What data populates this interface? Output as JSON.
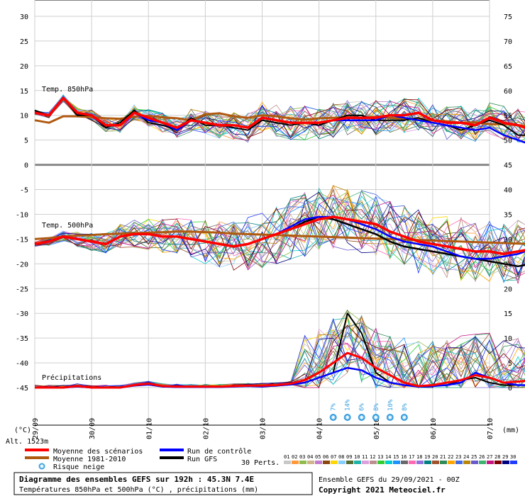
{
  "chart_data": {
    "type": "line",
    "title": "Diagramme des ensembles GEFS sur 192h : 45.3N 7.4E",
    "subtitle": "Températures 850hPa et 500hPa (°C) , précipitations (mm)",
    "run_info": "Ensemble GEFS du 29/09/2021 - 00Z",
    "copyright": "Copyright 2021 Meteociel.fr",
    "altitude": "Alt. 1523m",
    "left_unit": "(°C)",
    "right_unit": "(mm)",
    "left_ticks": [
      "30",
      "25",
      "20",
      "15",
      "10",
      "5",
      "0",
      "-5",
      "-10",
      "-15",
      "-20",
      "-25",
      "-30",
      "-35",
      "-40",
      "-45"
    ],
    "right_ticks": [
      "75",
      "70",
      "65",
      "60",
      "55",
      "50",
      "45",
      "40",
      "35",
      "30",
      "25",
      "20",
      "15",
      "10",
      "5",
      "0"
    ],
    "x_ticks": [
      "29/09",
      "30/09",
      "01/10",
      "02/10",
      "03/10",
      "04/10",
      "05/10",
      "06/10",
      "07/10"
    ],
    "panel_labels": {
      "t850": "Temp. 850hPa",
      "t500": "Temp. 500hPa",
      "precip": "Précipitations"
    },
    "legend": {
      "mean": {
        "label": "Moyenne des scénarios",
        "color": "#ff0000"
      },
      "climo": {
        "label": "Moyenne 1981-2010",
        "color": "#b05a10"
      },
      "snow": {
        "label": "Risque neige",
        "icon": "snowflake-icon",
        "color": "#3aa0e0"
      },
      "control": {
        "label": "Run de contrôle",
        "color": "#0000ff"
      },
      "gfs": {
        "label": "Run GFS",
        "color": "#000000"
      },
      "perts_label": "30 Perts."
    },
    "pert_numbers": [
      "01",
      "02",
      "03",
      "04",
      "05",
      "06",
      "07",
      "08",
      "09",
      "10",
      "11",
      "12",
      "13",
      "14",
      "15",
      "16",
      "17",
      "18",
      "19",
      "20",
      "21",
      "22",
      "23",
      "24",
      "25",
      "26",
      "27",
      "28",
      "29",
      "30"
    ],
    "pert_colors": [
      "#c8c8c8",
      "#ff9a3c",
      "#8fbc4f",
      "#d2b48c",
      "#c27bd0",
      "#8b4513",
      "#ffd700",
      "#87cefa",
      "#556b2f",
      "#20b2aa",
      "#dda0dd",
      "#bc8f8f",
      "#32cd32",
      "#00ced1",
      "#1e90ff",
      "#696969",
      "#ff69b4",
      "#9370db",
      "#008080",
      "#a0522d",
      "#2e8b57",
      "#ffa500",
      "#4169e1",
      "#b8860b",
      "#6a5acd",
      "#3cb371",
      "#c71585",
      "#800000",
      "#000080",
      "#1e3cff"
    ],
    "snow_risk": [
      {
        "x": 5.25,
        "pct": "7%"
      },
      {
        "x": 5.5,
        "pct": "14%"
      },
      {
        "x": 5.75,
        "pct": "6%"
      },
      {
        "x": 6.0,
        "pct": "8%"
      },
      {
        "x": 6.25,
        "pct": "10%"
      },
      {
        "x": 6.5,
        "pct": "8%"
      }
    ],
    "x_step_days": 0.25,
    "t850": {
      "mean": [
        10.5,
        10,
        13.5,
        10.5,
        10,
        8,
        8,
        10.5,
        9.5,
        8.5,
        7.5,
        9,
        8.5,
        8,
        8,
        7.5,
        9.5,
        9,
        8.5,
        8.5,
        8.5,
        9,
        9.5,
        9.5,
        9.5,
        10,
        10,
        10.5,
        9,
        8.5,
        8.5,
        8,
        9.5,
        8.5,
        8,
        7,
        8,
        6.5,
        6
      ],
      "climo": [
        9,
        8.5,
        9.8,
        9.8,
        9.6,
        9.4,
        9.3,
        9.7,
        9.9,
        9.6,
        9.4,
        9,
        10.2,
        10.4,
        9.8,
        9.5,
        10,
        9.8,
        9.4,
        9.1,
        9.4,
        9.5,
        9.6,
        9.5,
        9.7,
        9.5,
        9.3,
        9.3,
        9,
        8.8,
        8.5,
        8.6,
        8.2,
        8.2,
        8,
        7.8,
        7.8,
        7.5,
        7.2
      ],
      "control": [
        10.5,
        10,
        13.5,
        10.5,
        10,
        8,
        8,
        10.5,
        9,
        8.5,
        7,
        9,
        8.5,
        8,
        8,
        7.5,
        9.5,
        9,
        8.5,
        8.5,
        8.5,
        9,
        9,
        9,
        9,
        10,
        9.5,
        9,
        8.5,
        8,
        7.5,
        7,
        7.5,
        6,
        5,
        4,
        4.5,
        3,
        2.5
      ],
      "gfs": [
        11,
        10,
        13.5,
        10,
        10,
        7.5,
        8.5,
        11,
        8.5,
        8,
        7,
        9.5,
        8,
        8,
        7.5,
        7,
        9,
        8.5,
        8,
        8.5,
        8,
        9,
        10,
        10,
        9,
        9,
        9,
        9.5,
        8.5,
        8,
        7,
        8,
        9,
        8,
        6,
        6,
        7,
        5,
        4.5
      ]
    },
    "t500": {
      "mean": [
        -16,
        -15.5,
        -14.5,
        -15,
        -15.5,
        -16,
        -14.5,
        -14,
        -14,
        -14.5,
        -14.5,
        -15,
        -15.5,
        -16,
        -16.5,
        -16,
        -15,
        -14,
        -13,
        -12,
        -11,
        -10.5,
        -11,
        -11.5,
        -12,
        -13.5,
        -14.5,
        -15.5,
        -16,
        -16.5,
        -17,
        -17.5,
        -17.5,
        -18,
        -17.5,
        -17,
        -16.5,
        -16,
        -15.5
      ],
      "climo": [
        -15,
        -14.8,
        -14.5,
        -14.3,
        -14.2,
        -14,
        -13.9,
        -13.8,
        -13.7,
        -13.6,
        -13.5,
        -13.5,
        -13.6,
        -13.7,
        -13.9,
        -14,
        -14.1,
        -14.2,
        -14.3,
        -14.4,
        -14.5,
        -14.6,
        -14.7,
        -14.8,
        -14.9,
        -15,
        -15.1,
        -15.2,
        -15.3,
        -15.4,
        -15.5,
        -15.6,
        -15.7,
        -15.8,
        -15.9,
        -16,
        -16,
        -16,
        -16
      ],
      "control": [
        -16,
        -15.5,
        -14.5,
        -15,
        -15.5,
        -16,
        -14.5,
        -14,
        -14,
        -14.5,
        -14.5,
        -15,
        -15.5,
        -16,
        -16.5,
        -16,
        -15,
        -14,
        -12.5,
        -11,
        -10.5,
        -10.5,
        -11,
        -12,
        -13,
        -14.5,
        -15.5,
        -16,
        -16.5,
        -17.5,
        -18.5,
        -19,
        -19,
        -18.5,
        -18,
        -17,
        -16,
        -14.5,
        -14
      ],
      "gfs": [
        -16,
        -15.5,
        -14.5,
        -15,
        -15.5,
        -16,
        -14.5,
        -14,
        -14,
        -14.5,
        -14.5,
        -15,
        -15.5,
        -16,
        -16.5,
        -16,
        -15,
        -14,
        -13,
        -11.5,
        -10.5,
        -11,
        -12,
        -13,
        -14,
        -15.5,
        -16.5,
        -17,
        -17.5,
        -18,
        -18.5,
        -19,
        -19.5,
        -20,
        -20.5,
        -20,
        -19.5,
        -18.5,
        -17.5
      ]
    },
    "precip": {
      "mean": [
        0,
        0,
        0,
        0.3,
        0,
        0,
        0,
        0.5,
        0.8,
        0.3,
        0.2,
        0.2,
        0.2,
        0.2,
        0.3,
        0.4,
        0.4,
        0.5,
        0.8,
        1.5,
        3,
        5,
        7,
        6,
        4,
        2.5,
        1,
        0.3,
        0.5,
        1,
        1.5,
        2.5,
        2,
        1,
        1.2,
        1.5,
        1,
        0.8,
        0
      ],
      "control": [
        0,
        0,
        0,
        0.2,
        0,
        0,
        0,
        0.4,
        0.6,
        0.2,
        0.1,
        0.1,
        0.1,
        0.1,
        0.2,
        0.3,
        0.2,
        0.4,
        0.6,
        1,
        2,
        3,
        4,
        3.5,
        2,
        1,
        0.5,
        0.2,
        0.3,
        0.5,
        1,
        3,
        2,
        1,
        0.5,
        0.5,
        1,
        8,
        0
      ],
      "gfs": [
        0,
        0,
        0,
        0.2,
        0,
        0,
        0,
        0.4,
        0.6,
        0.2,
        0.1,
        0.1,
        0.1,
        0.1,
        0.2,
        0.3,
        0.2,
        0.4,
        0.6,
        1,
        2,
        3,
        15,
        11,
        3,
        1,
        0.5,
        0.2,
        0.3,
        0.5,
        1.5,
        2,
        1,
        0.5,
        0.5,
        0.5,
        0.5,
        0.5,
        0
      ]
    },
    "perturbations_note": "30 perturbation members shown as thin coloured lines around the mean"
  }
}
